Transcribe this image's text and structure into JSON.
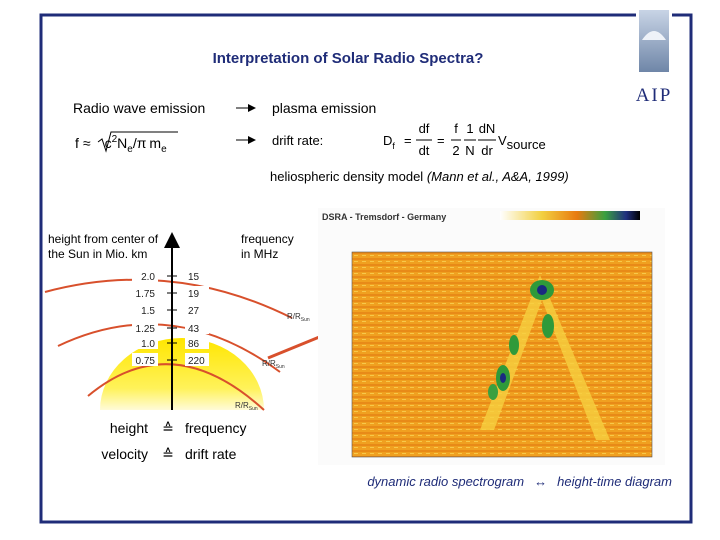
{
  "header": {
    "title": "Interpretation of Solar Radio Spectra?",
    "logo": "AIP"
  },
  "emission": {
    "label": "Radio wave emission",
    "result": "plasma emission",
    "formula": {
      "lhs": "f",
      "approx": "≈",
      "c": "c",
      "exp": "2",
      "n": "N",
      "n_sub": "e",
      "slash": "/",
      "pi": "π",
      "m": "m",
      "m_sub": "e"
    }
  },
  "drift": {
    "label": "drift rate:",
    "formula": {
      "d": "D",
      "d_sub": "f",
      "eq1": "=",
      "num1": "df",
      "den1": "dt",
      "eq2": "=",
      "num2": "f",
      "den2": "2",
      "num3": "1",
      "den3": "N",
      "num4": "dN",
      "den4": "dr",
      "v": "V",
      "v_sub": "source"
    }
  },
  "density_model": {
    "text": "heliospheric density model",
    "citation": "(Mann et al., A&A, 1999)"
  },
  "diagram": {
    "height_label": [
      "height from center of",
      "the Sun in Mio. km"
    ],
    "frequency_label": [
      "frequency",
      "in MHz"
    ],
    "rows": [
      {
        "height": "2.0",
        "frequency": 15
      },
      {
        "height": "1.75",
        "frequency": 19
      },
      {
        "height": "1.5",
        "frequency": 27
      },
      {
        "height": "1.25",
        "frequency": 43
      },
      {
        "height": "1.0",
        "frequency": 86
      },
      {
        "height": "0.75",
        "frequency": 220
      }
    ],
    "radius_labels": [
      {
        "r": "R/R",
        "sub": "Sun"
      },
      {
        "r": "R/R",
        "sub": "Sun"
      },
      {
        "r": "R/R",
        "sub": "Sun"
      }
    ]
  },
  "correspondence": [
    {
      "left": "height",
      "symbol": "≙",
      "right": "frequency"
    },
    {
      "left": "velocity",
      "symbol": "≙",
      "right": "drift rate"
    }
  ],
  "spectrogram": {
    "station": "DSRA - Tremsdorf - Germany"
  },
  "caption": {
    "left": "dynamic radio spectrogram",
    "arrow": "↔",
    "right": "height-time diagram"
  }
}
